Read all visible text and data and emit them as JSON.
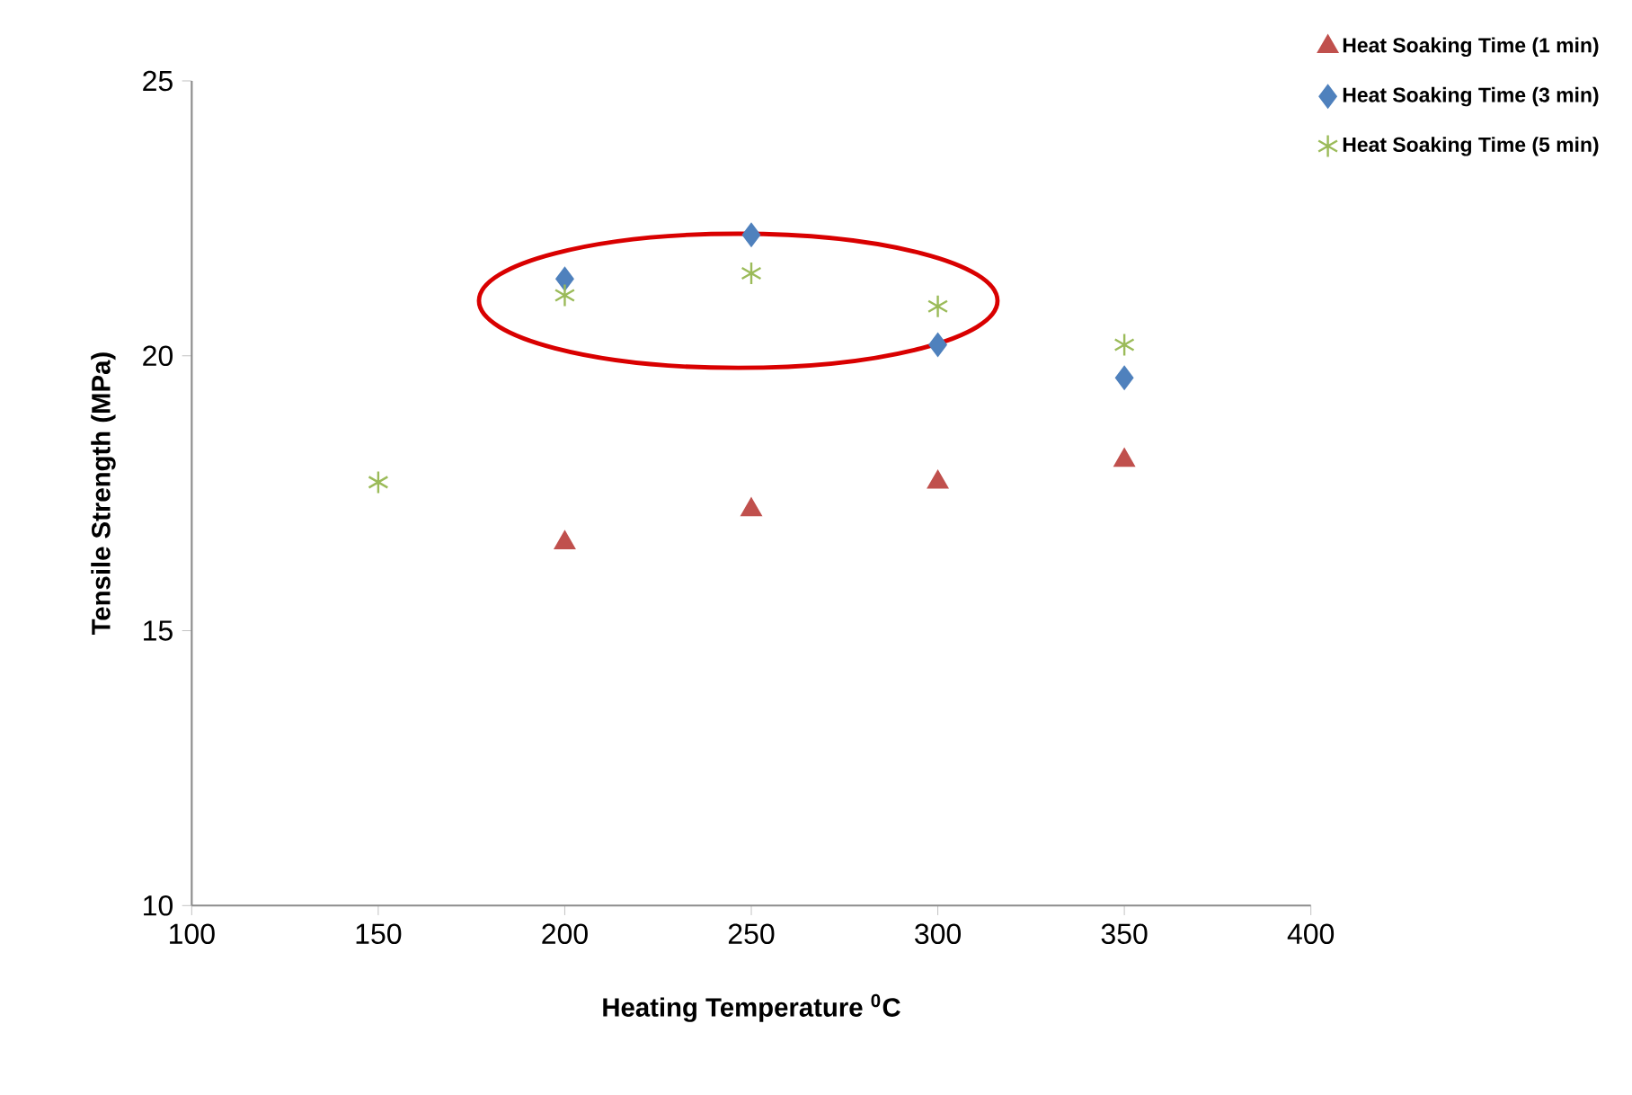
{
  "chart_data": {
    "type": "scatter",
    "xlabel": "Heating Temperature $^{0}$C",
    "ylabel": "Tensile Strength (MPa)",
    "xlim": [
      100,
      400
    ],
    "xticks": [
      100,
      150,
      200,
      250,
      300,
      350,
      400
    ],
    "ylim": [
      10,
      25
    ],
    "yticks": [
      10,
      15,
      20,
      25
    ],
    "grid": false,
    "legend": "top right",
    "series": [
      {
        "name": "Heat Soaking Time (1 min)",
        "color": "#c0504d",
        "marker": "triangle",
        "x": [
          200,
          250,
          300,
          350
        ],
        "values": [
          16.6,
          17.2,
          17.7,
          18.1
        ]
      },
      {
        "name": "Heat Soaking Time (3 min)",
        "color": "#4f81bd",
        "marker": "diamond",
        "x": [
          200,
          250,
          300,
          350
        ],
        "values": [
          21.4,
          22.2,
          20.2,
          19.6
        ]
      },
      {
        "name": "Heat Soaking Time (5 min)",
        "color": "#9bbb59",
        "marker": "cross",
        "x": [
          150,
          200,
          250,
          300,
          350
        ],
        "values": [
          17.7,
          21.1,
          21.5,
          20.9,
          20.2
        ]
      }
    ]
  }
}
